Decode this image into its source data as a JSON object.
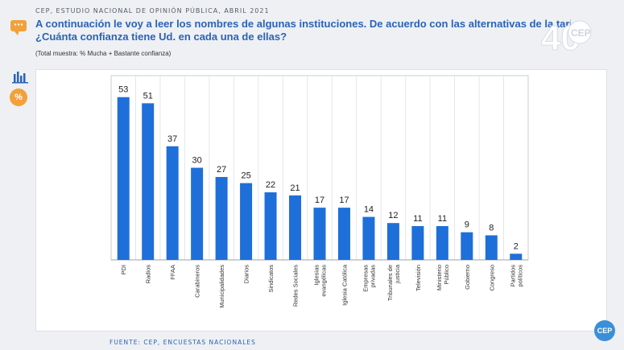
{
  "header": {
    "source_line": "CEP, ESTUDIO NACIONAL DE OPINIÓN PÚBLICA, ABRIL 2021",
    "question_line1": "A continuación le voy a leer los nombres de algunas instituciones. De acuerdo con las alternativas de la tarjeta",
    "question_line2": "¿Cuánta confianza tiene Ud. en cada una de ellas?",
    "note": "(Total muestra: % Mucha + Bastante confianza)"
  },
  "logo": {
    "number": "40",
    "brand": "CEP"
  },
  "sidebar": {
    "percent_label": "%"
  },
  "footer": {
    "source": "FUENTE: CEP, ENCUESTAS NACIONALES",
    "badge": "CEP"
  },
  "colors": {
    "bar": "#1e6fd9",
    "accent": "#f2a13a",
    "title": "#2a63b8"
  },
  "chart_data": {
    "type": "bar",
    "title": "",
    "xlabel": "",
    "ylabel": "",
    "ylim": [
      0,
      60
    ],
    "grid": true,
    "categories": [
      "PDI",
      "Radios",
      "FFAA",
      "Carabineros",
      "Municipalidades",
      "Diarios",
      "Sindicatos",
      "Redes Sociales",
      "Iglesias evangélicas",
      "Iglesia Católica",
      "Empresas privadas",
      "Tribunales de justicia",
      "Televisión",
      "Ministerio Público",
      "Gobierno",
      "Congreso",
      "Partidos políticos"
    ],
    "values": [
      53,
      51,
      37,
      30,
      27,
      25,
      22,
      21,
      17,
      17,
      14,
      12,
      11,
      11,
      9,
      8,
      2
    ]
  }
}
